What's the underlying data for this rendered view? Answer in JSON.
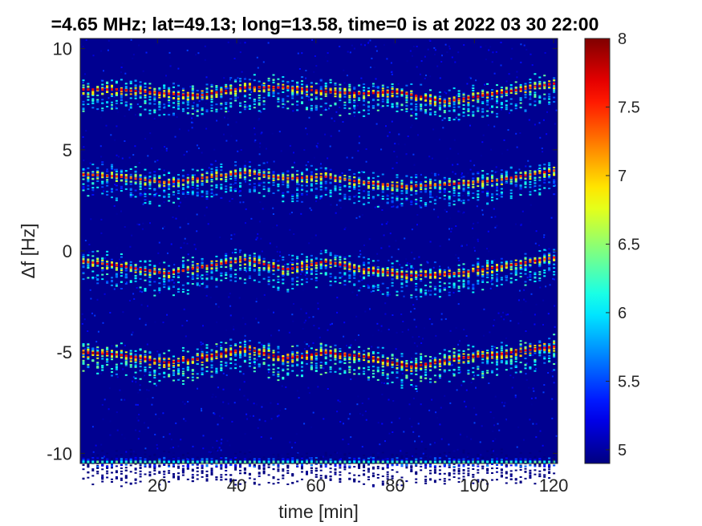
{
  "chart_data": {
    "type": "heatmap",
    "title": "=4.65 MHz;  lat=49.13; long=13.58, time=0 is at 2022 03 30 22:00",
    "xlabel": "time [min]",
    "ylabel": "Δf [Hz]",
    "xlim": [
      0.5,
      121
    ],
    "ylim": [
      -10.5,
      10.5
    ],
    "xticks": [
      20,
      40,
      60,
      80,
      100,
      120
    ],
    "yticks": [
      -10,
      -5,
      0,
      5,
      10
    ],
    "colormap": "jet",
    "colorbar": {
      "limits": [
        4.9,
        8
      ],
      "ticks": [
        5,
        5.5,
        6,
        6.5,
        7,
        7.5,
        8
      ]
    },
    "background_value": 4.95,
    "ridges": [
      {
        "name": "",
        "peak_value": 7.8,
        "points": [
          [
            1,
            8.0
          ],
          [
            10,
            8.0
          ],
          [
            22,
            7.8
          ],
          [
            30,
            7.7
          ],
          [
            42,
            8.1
          ],
          [
            52,
            8.1
          ],
          [
            62,
            7.9
          ],
          [
            72,
            7.8
          ],
          [
            80,
            7.9
          ],
          [
            92,
            7.4
          ],
          [
            105,
            7.8
          ],
          [
            120,
            8.3
          ]
        ]
      },
      {
        "name": "",
        "peak_value": 7.6,
        "points": [
          [
            1,
            3.8
          ],
          [
            10,
            3.7
          ],
          [
            22,
            3.4
          ],
          [
            30,
            3.6
          ],
          [
            42,
            3.9
          ],
          [
            52,
            3.6
          ],
          [
            62,
            3.7
          ],
          [
            72,
            3.4
          ],
          [
            82,
            3.2
          ],
          [
            92,
            3.3
          ],
          [
            105,
            3.5
          ],
          [
            120,
            4.0
          ]
        ]
      },
      {
        "name": "",
        "peak_value": 7.7,
        "points": [
          [
            1,
            -0.5
          ],
          [
            10,
            -0.7
          ],
          [
            22,
            -1.1
          ],
          [
            30,
            -0.8
          ],
          [
            42,
            -0.4
          ],
          [
            52,
            -0.9
          ],
          [
            62,
            -0.5
          ],
          [
            72,
            -0.9
          ],
          [
            84,
            -1.2
          ],
          [
            95,
            -1.1
          ],
          [
            105,
            -0.8
          ],
          [
            120,
            -0.3
          ]
        ]
      },
      {
        "name": "",
        "peak_value": 7.9,
        "points": [
          [
            1,
            -5.0
          ],
          [
            10,
            -5.1
          ],
          [
            22,
            -5.5
          ],
          [
            30,
            -5.3
          ],
          [
            42,
            -4.8
          ],
          [
            52,
            -5.3
          ],
          [
            62,
            -5.0
          ],
          [
            72,
            -5.2
          ],
          [
            84,
            -5.7
          ],
          [
            95,
            -5.3
          ],
          [
            105,
            -5.1
          ],
          [
            120,
            -4.7
          ]
        ]
      },
      {
        "name": "",
        "peak_value": 6.4,
        "points": [
          [
            1,
            -10.4
          ],
          [
            120,
            -10.4
          ]
        ]
      }
    ]
  }
}
